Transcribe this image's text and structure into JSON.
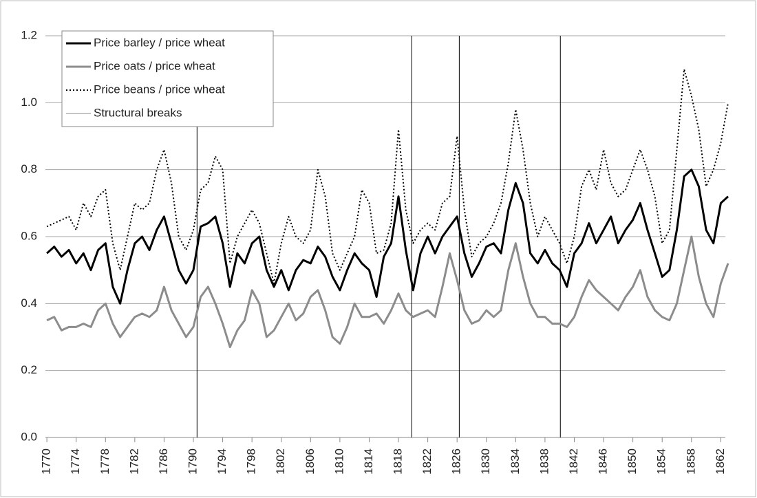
{
  "chart_data": {
    "type": "line",
    "x": [
      1770,
      1771,
      1772,
      1773,
      1774,
      1775,
      1776,
      1777,
      1778,
      1779,
      1780,
      1781,
      1782,
      1783,
      1784,
      1785,
      1786,
      1787,
      1788,
      1789,
      1790,
      1791,
      1792,
      1793,
      1794,
      1795,
      1796,
      1797,
      1798,
      1799,
      1800,
      1801,
      1802,
      1803,
      1804,
      1805,
      1806,
      1807,
      1808,
      1809,
      1810,
      1811,
      1812,
      1813,
      1814,
      1815,
      1816,
      1817,
      1818,
      1819,
      1820,
      1821,
      1822,
      1823,
      1824,
      1825,
      1826,
      1827,
      1828,
      1829,
      1830,
      1831,
      1832,
      1833,
      1834,
      1835,
      1836,
      1837,
      1838,
      1839,
      1840,
      1841,
      1842,
      1843,
      1844,
      1845,
      1846,
      1847,
      1848,
      1849,
      1850,
      1851,
      1852,
      1853,
      1854,
      1855,
      1856,
      1857,
      1858,
      1859,
      1860,
      1861,
      1862,
      1863
    ],
    "series": [
      {
        "name": "Price barley / price wheat",
        "color": "#000000",
        "style": "solid",
        "width": 3,
        "values": [
          0.55,
          0.57,
          0.54,
          0.56,
          0.52,
          0.55,
          0.5,
          0.56,
          0.58,
          0.45,
          0.4,
          0.5,
          0.58,
          0.6,
          0.56,
          0.62,
          0.66,
          0.58,
          0.5,
          0.46,
          0.5,
          0.63,
          0.64,
          0.66,
          0.58,
          0.45,
          0.55,
          0.52,
          0.58,
          0.6,
          0.5,
          0.45,
          0.5,
          0.44,
          0.5,
          0.53,
          0.52,
          0.57,
          0.54,
          0.48,
          0.44,
          0.5,
          0.55,
          0.52,
          0.5,
          0.42,
          0.54,
          0.58,
          0.72,
          0.56,
          0.44,
          0.55,
          0.6,
          0.55,
          0.6,
          0.63,
          0.66,
          0.55,
          0.48,
          0.52,
          0.57,
          0.58,
          0.55,
          0.68,
          0.76,
          0.7,
          0.55,
          0.52,
          0.56,
          0.52,
          0.5,
          0.45,
          0.55,
          0.58,
          0.64,
          0.58,
          0.62,
          0.66,
          0.58,
          0.62,
          0.65,
          0.7,
          0.62,
          0.55,
          0.48,
          0.5,
          0.62,
          0.78,
          0.8,
          0.75,
          0.62,
          0.58,
          0.7,
          0.72
        ]
      },
      {
        "name": "Price oats / price wheat",
        "color": "#8c8c8c",
        "style": "solid",
        "width": 3,
        "values": [
          0.35,
          0.36,
          0.32,
          0.33,
          0.33,
          0.34,
          0.33,
          0.38,
          0.4,
          0.34,
          0.3,
          0.33,
          0.36,
          0.37,
          0.36,
          0.38,
          0.45,
          0.38,
          0.34,
          0.3,
          0.33,
          0.42,
          0.45,
          0.4,
          0.34,
          0.27,
          0.32,
          0.35,
          0.44,
          0.4,
          0.3,
          0.32,
          0.36,
          0.4,
          0.35,
          0.37,
          0.42,
          0.44,
          0.38,
          0.3,
          0.28,
          0.33,
          0.4,
          0.36,
          0.36,
          0.37,
          0.34,
          0.38,
          0.43,
          0.38,
          0.36,
          0.37,
          0.38,
          0.36,
          0.45,
          0.55,
          0.47,
          0.38,
          0.34,
          0.35,
          0.38,
          0.36,
          0.38,
          0.5,
          0.58,
          0.48,
          0.4,
          0.36,
          0.36,
          0.34,
          0.34,
          0.33,
          0.36,
          0.42,
          0.47,
          0.44,
          0.42,
          0.4,
          0.38,
          0.42,
          0.45,
          0.5,
          0.42,
          0.38,
          0.36,
          0.35,
          0.4,
          0.5,
          0.6,
          0.48,
          0.4,
          0.36,
          0.46,
          0.52
        ]
      },
      {
        "name": "Price beans / price wheat",
        "color": "#000000",
        "style": "dotted",
        "width": 2,
        "values": [
          0.63,
          0.64,
          0.65,
          0.66,
          0.62,
          0.7,
          0.66,
          0.72,
          0.74,
          0.58,
          0.5,
          0.6,
          0.7,
          0.68,
          0.7,
          0.8,
          0.86,
          0.76,
          0.6,
          0.56,
          0.62,
          0.74,
          0.76,
          0.84,
          0.8,
          0.52,
          0.6,
          0.64,
          0.68,
          0.64,
          0.55,
          0.46,
          0.58,
          0.66,
          0.6,
          0.58,
          0.62,
          0.8,
          0.72,
          0.55,
          0.5,
          0.55,
          0.6,
          0.74,
          0.7,
          0.55,
          0.56,
          0.64,
          0.92,
          0.68,
          0.58,
          0.62,
          0.64,
          0.62,
          0.7,
          0.72,
          0.9,
          0.68,
          0.54,
          0.58,
          0.6,
          0.64,
          0.7,
          0.82,
          0.98,
          0.86,
          0.7,
          0.6,
          0.66,
          0.62,
          0.58,
          0.52,
          0.6,
          0.75,
          0.8,
          0.74,
          0.86,
          0.76,
          0.72,
          0.74,
          0.8,
          0.86,
          0.8,
          0.72,
          0.58,
          0.62,
          0.86,
          1.1,
          1.02,
          0.92,
          0.75,
          0.8,
          0.88,
          1.0
        ]
      }
    ],
    "structural_breaks": {
      "name": "Structural breaks",
      "color": "#000000",
      "x": [
        1790.5,
        1819.8,
        1826.3,
        1840.1
      ]
    },
    "xlim": [
      1769.8,
      1863
    ],
    "xticks": [
      1770,
      1774,
      1778,
      1782,
      1786,
      1790,
      1794,
      1798,
      1802,
      1806,
      1810,
      1814,
      1818,
      1822,
      1826,
      1830,
      1834,
      1838,
      1842,
      1846,
      1850,
      1854,
      1858,
      1862
    ],
    "ylim": [
      0,
      1.2
    ],
    "yticks": [
      {
        "value": 0,
        "label": "0.0"
      },
      0.2,
      0.4,
      0.6,
      0.8,
      {
        "value": 1,
        "label": "1.0"
      },
      1.2
    ],
    "grid": true,
    "legend": "top-left"
  }
}
